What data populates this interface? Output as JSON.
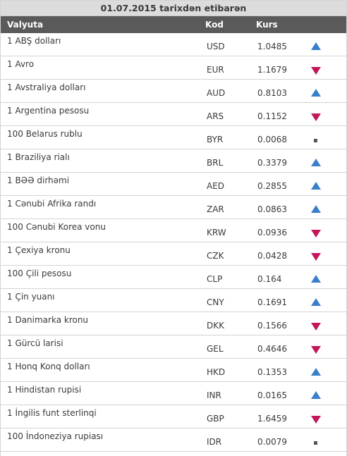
{
  "header": {
    "title": "01.07.2015 tarixdən etibarən",
    "col_name": "Valyuta",
    "col_code": "Kod",
    "col_rate": "Kurs"
  },
  "colors": {
    "up": "#3a7fc9",
    "down": "#c2185b",
    "header_bg": "#5a5a5a",
    "title_bg": "#dcdcdc"
  },
  "rows": [
    {
      "name": "1 ABŞ dolları",
      "code": "USD",
      "rate": "1.0485",
      "trend": "up"
    },
    {
      "name": "1 Avro",
      "code": "EUR",
      "rate": "1.1679",
      "trend": "down"
    },
    {
      "name": "1 Avstraliya dolları",
      "code": "AUD",
      "rate": "0.8103",
      "trend": "up"
    },
    {
      "name": "1 Argentina pesosu",
      "code": "ARS",
      "rate": "0.1152",
      "trend": "down"
    },
    {
      "name": "100 Belarus rublu",
      "code": "BYR",
      "rate": "0.0068",
      "trend": "same"
    },
    {
      "name": "1 Braziliya rialı",
      "code": "BRL",
      "rate": "0.3379",
      "trend": "up"
    },
    {
      "name": "1 BƏƏ dirhəmi",
      "code": "AED",
      "rate": "0.2855",
      "trend": "up"
    },
    {
      "name": "1 Cənubi Afrika randı",
      "code": "ZAR",
      "rate": "0.0863",
      "trend": "up"
    },
    {
      "name": "100 Cənubi Korea vonu",
      "code": "KRW",
      "rate": "0.0936",
      "trend": "down"
    },
    {
      "name": "1 Çexiya kronu",
      "code": "CZK",
      "rate": "0.0428",
      "trend": "down"
    },
    {
      "name": "100 Çili pesosu",
      "code": "CLP",
      "rate": "0.164",
      "trend": "up"
    },
    {
      "name": "1 Çin yuanı",
      "code": "CNY",
      "rate": "0.1691",
      "trend": "up"
    },
    {
      "name": "1 Danimarka kronu",
      "code": "DKK",
      "rate": "0.1566",
      "trend": "down"
    },
    {
      "name": "1 Gürcü larisi",
      "code": "GEL",
      "rate": "0.4646",
      "trend": "down"
    },
    {
      "name": "1 Honq Konq dolları",
      "code": "HKD",
      "rate": "0.1353",
      "trend": "up"
    },
    {
      "name": "1 Hindistan rupisi",
      "code": "INR",
      "rate": "0.0165",
      "trend": "up"
    },
    {
      "name": "1 İngilis funt sterlinqi",
      "code": "GBP",
      "rate": "1.6459",
      "trend": "down"
    },
    {
      "name": "100 İndoneziya rupiası",
      "code": "IDR",
      "rate": "0.0079",
      "trend": "same"
    }
  ]
}
